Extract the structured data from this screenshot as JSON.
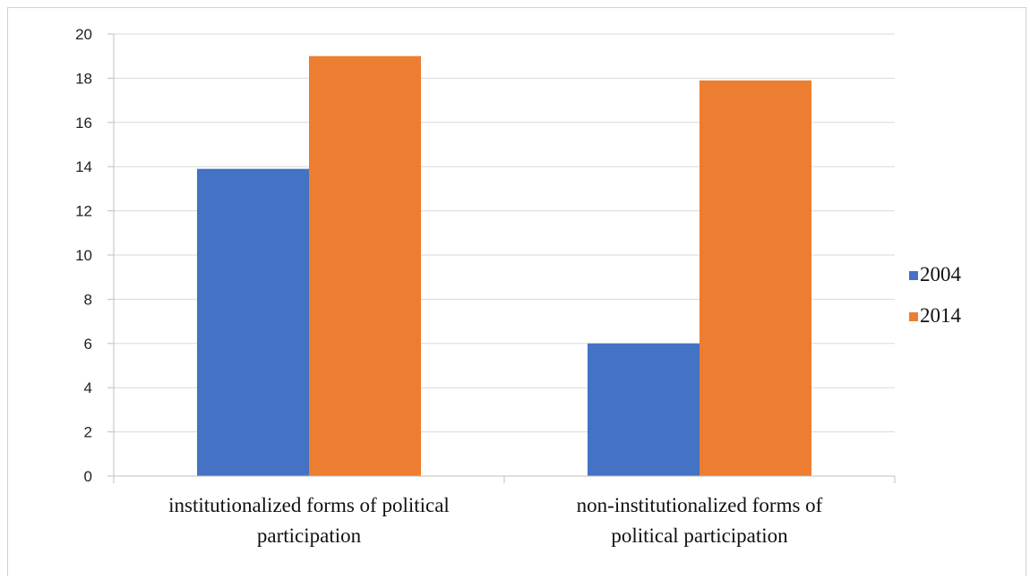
{
  "chart_data": {
    "type": "bar",
    "title": "",
    "xlabel": "",
    "ylabel": "",
    "categories": [
      [
        "institutionalized forms of political",
        "participation"
      ],
      [
        "non-institutionalized forms of",
        "political participation"
      ]
    ],
    "series": [
      {
        "name": "2004",
        "values": [
          13.9,
          6.0
        ],
        "color": "#4472C4"
      },
      {
        "name": "2014",
        "values": [
          19.0,
          17.9
        ],
        "color": "#ED7D31"
      }
    ],
    "ylim": [
      0,
      20
    ],
    "yticks": [
      0,
      2,
      4,
      6,
      8,
      10,
      12,
      14,
      16,
      18,
      20
    ],
    "grid": true,
    "legend_position": "right"
  }
}
